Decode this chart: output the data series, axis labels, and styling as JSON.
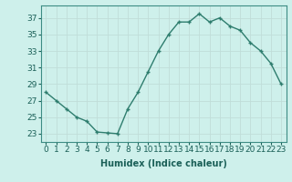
{
  "x": [
    0,
    1,
    2,
    3,
    4,
    5,
    6,
    7,
    8,
    9,
    10,
    11,
    12,
    13,
    14,
    15,
    16,
    17,
    18,
    19,
    20,
    21,
    22,
    23
  ],
  "y": [
    28,
    27,
    26,
    25,
    24.5,
    23.2,
    23.1,
    23.0,
    26,
    28,
    30.5,
    33,
    35,
    36.5,
    36.5,
    37.5,
    36.5,
    37,
    36,
    35.5,
    34,
    33,
    31.5,
    29
  ],
  "line_color": "#2e7d6e",
  "marker": "+",
  "marker_color": "#2e7d6e",
  "bg_color": "#cef0eb",
  "grid_color": "#c0ddd9",
  "xlabel": "Humidex (Indice chaleur)",
  "xlabel_fontsize": 7,
  "yticks": [
    23,
    25,
    27,
    29,
    31,
    33,
    35,
    37
  ],
  "xticks": [
    0,
    1,
    2,
    3,
    4,
    5,
    6,
    7,
    8,
    9,
    10,
    11,
    12,
    13,
    14,
    15,
    16,
    17,
    18,
    19,
    20,
    21,
    22,
    23
  ],
  "ylim": [
    22.0,
    38.5
  ],
  "xlim": [
    -0.5,
    23.5
  ],
  "tick_fontsize": 6.5,
  "line_width": 1.0,
  "marker_size": 3.5
}
